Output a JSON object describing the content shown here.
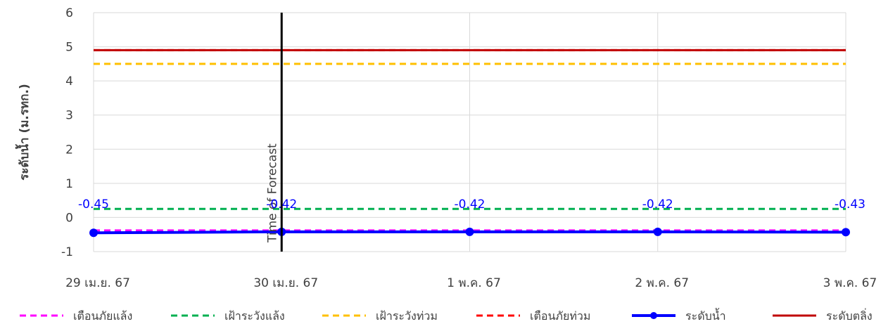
{
  "chart_data": {
    "type": "line",
    "ylabel": "ระดับน้ำ (ม.รทก.)",
    "xlabel": "",
    "ylim": [
      -1,
      6
    ],
    "yticks": [
      -1,
      0,
      1,
      2,
      3,
      4,
      5,
      6
    ],
    "categories": [
      "29 เม.ย. 67",
      "30 เม.ย. 67",
      "1 พ.ค. 67",
      "2 พ.ค. 67",
      "3 พ.ค. 67"
    ],
    "grid": true,
    "legend_position": "bottom",
    "forecast_marker": {
      "x": "30 เม.ย. 67",
      "label": "Time of Forecast",
      "color": "#000000"
    },
    "series": [
      {
        "name": "เตือนภัยแล้ง",
        "style": "dashed",
        "color": "#ff00ff",
        "values": [
          -0.38,
          -0.38,
          -0.38,
          -0.38,
          -0.38
        ]
      },
      {
        "name": "เฝ้าระวังแล้ง",
        "style": "dashed",
        "color": "#00b050",
        "values": [
          0.25,
          0.25,
          0.25,
          0.25,
          0.25
        ]
      },
      {
        "name": "เฝ้าระวังท่วม",
        "style": "dashed",
        "color": "#ffc000",
        "values": [
          4.5,
          4.5,
          4.5,
          4.5,
          4.5
        ]
      },
      {
        "name": "เตือนภัยท่วม",
        "style": "dashed",
        "color": "#ff0000",
        "values": [
          4.9,
          4.9,
          4.9,
          4.9,
          4.9
        ]
      },
      {
        "name": "ระดับน้ำ",
        "style": "solid-markers",
        "color": "#0000ff",
        "values": [
          -0.45,
          -0.42,
          -0.42,
          -0.42,
          -0.43
        ],
        "labels": [
          "-0.45",
          "-0.42",
          "-0.42",
          "-0.42",
          "-0.43"
        ]
      },
      {
        "name": "ระดับตลิ่ง",
        "style": "solid",
        "color": "#c00000",
        "values": [
          4.9,
          4.9,
          4.9,
          4.9,
          4.9
        ]
      }
    ]
  }
}
